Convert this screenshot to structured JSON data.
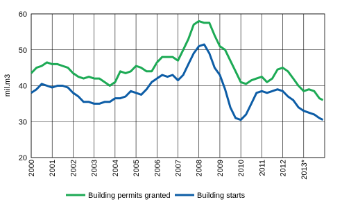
{
  "chart_data": {
    "type": "line",
    "y_label": "mil.m3",
    "x": [
      2000,
      2000.25,
      2000.5,
      2000.75,
      2001,
      2001.25,
      2001.5,
      2001.75,
      2002,
      2002.25,
      2002.5,
      2002.75,
      2003,
      2003.25,
      2003.5,
      2003.75,
      2004,
      2004.25,
      2004.5,
      2004.75,
      2005,
      2005.25,
      2005.5,
      2005.75,
      2006,
      2006.25,
      2006.5,
      2006.75,
      2007,
      2007.25,
      2007.5,
      2007.75,
      2008,
      2008.25,
      2008.5,
      2008.75,
      2009,
      2009.25,
      2009.5,
      2009.75,
      2010,
      2010.25,
      2010.5,
      2010.75,
      2011,
      2011.25,
      2011.5,
      2011.75,
      2012,
      2012.25,
      2012.5,
      2012.75,
      2013,
      2013.25,
      2013.5,
      2013.75,
      2013.92
    ],
    "series": [
      {
        "name": "Building permits granted",
        "color": "#1daa55",
        "values": [
          43.5,
          45,
          45.5,
          46.5,
          46,
          46,
          45.5,
          45,
          43.5,
          42.5,
          42,
          42.5,
          42,
          42,
          41,
          40,
          41,
          44,
          43.5,
          44,
          45.5,
          45,
          44,
          44,
          46.5,
          48,
          48,
          48,
          47,
          50,
          53,
          57,
          58,
          57.5,
          57.5,
          54,
          51,
          50,
          47,
          44,
          41,
          40.5,
          41.5,
          42,
          42.5,
          41,
          42,
          44.5,
          45,
          44,
          42,
          40,
          38.5,
          39,
          38.5,
          36.5,
          36
        ]
      },
      {
        "name": "Building starts",
        "color": "#0d5da6",
        "values": [
          38,
          39,
          40.5,
          40,
          39.5,
          40,
          40,
          39.5,
          38,
          37,
          35.5,
          35.5,
          35,
          35,
          35.5,
          35.5,
          36.5,
          36.5,
          37,
          38.5,
          38,
          37.5,
          39,
          41,
          42,
          43,
          42.5,
          43,
          41.5,
          43,
          46,
          49,
          51,
          51.5,
          49,
          45,
          43,
          39,
          34,
          31,
          30.5,
          32,
          35,
          38,
          38.5,
          38,
          38.5,
          39,
          38.5,
          37,
          36,
          34,
          33,
          32.5,
          32,
          31,
          30.5
        ]
      }
    ],
    "xlim": [
      2000,
      2014
    ],
    "xticks": [
      2000,
      2001,
      2002,
      2003,
      2004,
      2005,
      2006,
      2007,
      2008,
      2009,
      2010,
      2011,
      2012,
      {
        "value": 2013,
        "label": "2013*"
      }
    ],
    "ylim": [
      20,
      60
    ],
    "yticks": [
      20,
      30,
      40,
      50,
      60
    ],
    "grid": true,
    "legend": "bottom"
  }
}
